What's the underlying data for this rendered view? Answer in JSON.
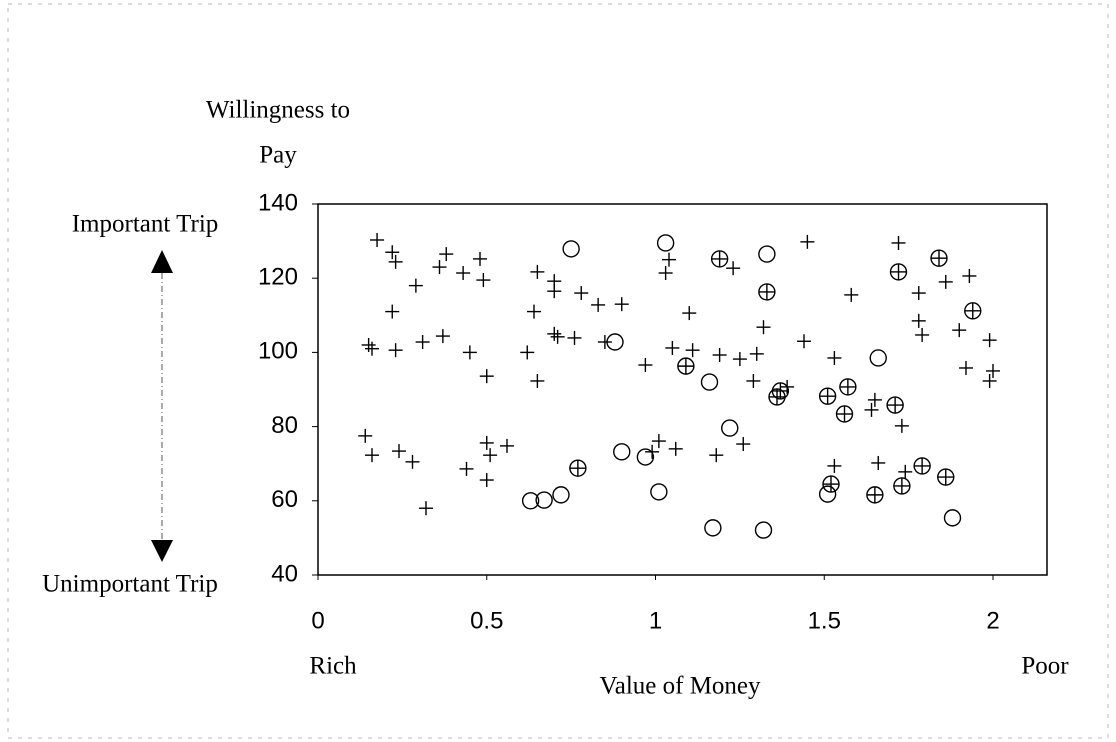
{
  "chart_data": {
    "type": "scatter",
    "y_label_lines": [
      "Willingness to",
      "Pay"
    ],
    "x_label": "Value of Money",
    "annotations": {
      "top": "Important Trip",
      "bottom": "Unimportant Trip",
      "left": "Rich",
      "right": "Poor"
    },
    "xlim": [
      0,
      2.16
    ],
    "xticks": [
      0,
      0.5,
      1,
      1.5,
      2
    ],
    "ylim": [
      40,
      140
    ],
    "yticks": [
      40,
      60,
      80,
      100,
      120,
      140
    ],
    "series": [
      {
        "marker": "plus",
        "color": "#000000",
        "x": [
          0.175,
          0.22,
          0.23,
          0.29,
          0.22,
          0.15,
          0.16,
          0.23,
          0.31,
          0.37,
          0.36,
          0.38,
          0.43,
          0.48,
          0.49,
          0.5,
          0.45,
          0.14,
          0.16,
          0.24,
          0.28,
          0.32,
          0.44,
          0.5,
          0.51,
          0.5,
          0.56,
          0.65,
          0.62,
          0.64,
          0.65,
          0.7,
          0.7,
          0.7,
          0.71,
          0.76,
          0.78,
          0.83,
          0.85,
          0.9,
          0.97,
          1.04,
          1.03,
          1.05,
          1.1,
          1.11,
          1.01,
          0.99,
          1.06,
          1.19,
          1.25,
          1.23,
          1.18,
          1.26,
          1.3,
          1.32,
          1.29,
          1.39,
          1.44,
          1.45,
          1.53,
          1.53,
          1.58,
          1.64,
          1.65,
          1.66,
          1.72,
          1.73,
          1.74,
          1.78,
          1.78,
          1.79,
          1.86,
          1.9,
          1.92,
          1.93,
          1.99,
          1.99,
          2.0
        ],
        "values": [
          130.3,
          127,
          124.4,
          118,
          111,
          102,
          101,
          100.6,
          102.8,
          104.4,
          123,
          126.5,
          121.4,
          125.2,
          119.5,
          93.6,
          100,
          77.5,
          72.3,
          73.4,
          70.5,
          58,
          68.6,
          75.6,
          72.3,
          65.6,
          74.8,
          92.3,
          100,
          111,
          121.7,
          119.2,
          116.5,
          105,
          104.2,
          103.9,
          116,
          112.8,
          102.8,
          113,
          96.6,
          125,
          121.4,
          101.2,
          110.6,
          100.6,
          76.1,
          73.2,
          74,
          99.3,
          98.2,
          122.7,
          72.3,
          75.3,
          99.6,
          106.8,
          92.3,
          90.7,
          103,
          129.8,
          98.5,
          69.4,
          115.5,
          84.5,
          87.2,
          70.2,
          129.5,
          80.2,
          67.8,
          116,
          108.5,
          104.7,
          119,
          106,
          95.8,
          120.6,
          103.3,
          92.3,
          95
        ]
      },
      {
        "marker": "circle",
        "color": "#000000",
        "x": [
          1.33,
          1.03,
          0.75,
          0.88,
          1.16,
          1.66,
          0.72,
          0.67,
          0.63,
          0.9,
          0.97,
          1.01,
          1.22,
          1.17,
          1.32,
          1.51,
          1.88
        ],
        "values": [
          126.5,
          129.5,
          127.9,
          102.8,
          92,
          98.5,
          61.6,
          60.2,
          60,
          73.2,
          71.8,
          62.4,
          79.6,
          52.7,
          52.1,
          61.8,
          55.4
        ]
      },
      {
        "marker": "circle-plus",
        "color": "#000000",
        "x": [
          1.19,
          1.33,
          1.09,
          1.37,
          1.36,
          1.51,
          1.57,
          1.56,
          1.71,
          1.72,
          1.84,
          1.94,
          0.77,
          1.52,
          1.65,
          1.73,
          1.79,
          1.86
        ],
        "values": [
          125.2,
          116.3,
          96.3,
          89.6,
          88,
          88.2,
          90.7,
          83.4,
          85.8,
          121.7,
          125.4,
          111.2,
          68.8,
          64.5,
          61.6,
          64,
          69.4,
          66.4
        ]
      }
    ]
  }
}
